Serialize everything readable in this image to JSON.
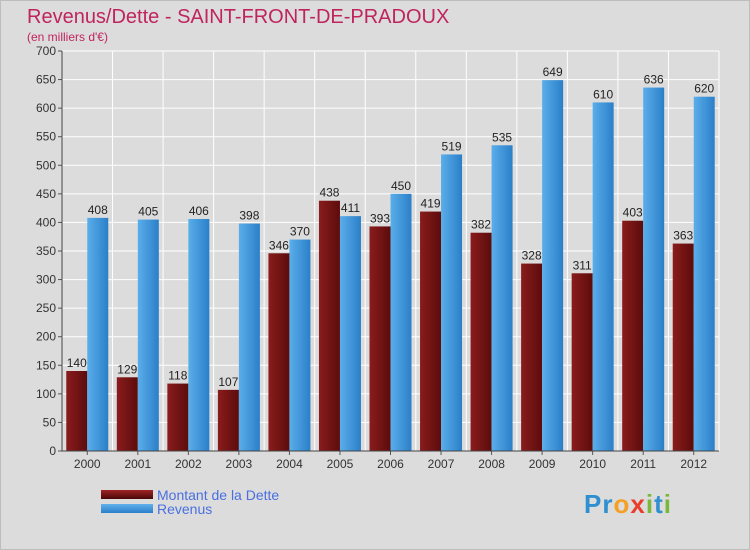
{
  "header": {
    "title": "Revenus/Dette - SAINT-FRONT-DE-PRADOUX",
    "subtitle": "(en milliers d'€)"
  },
  "legend": {
    "items": [
      {
        "label": "Montant de la Dette",
        "color": "#7a1515"
      },
      {
        "label": "Revenus",
        "color": "#3f97de"
      }
    ]
  },
  "logo": {
    "letters": [
      "P",
      "r",
      "o",
      "x",
      "i",
      "t",
      "i"
    ],
    "colors": [
      "#2f8fd0",
      "#2f8fd0",
      "#f4a026",
      "#e83e2b",
      "#7ab83a",
      "#2f8fd0",
      "#7ab83a"
    ]
  },
  "chart_data": {
    "type": "bar",
    "title": "Revenus/Dette - SAINT-FRONT-DE-PRADOUX",
    "subtitle": "(en milliers d'€)",
    "categories": [
      "2000",
      "2001",
      "2002",
      "2003",
      "2004",
      "2005",
      "2006",
      "2007",
      "2008",
      "2009",
      "2010",
      "2011",
      "2012"
    ],
    "ylim": [
      0,
      700
    ],
    "yticks": [
      0,
      50,
      100,
      150,
      200,
      250,
      300,
      350,
      400,
      450,
      500,
      550,
      600,
      650,
      700
    ],
    "grid": true,
    "series": [
      {
        "name": "Montant de la Dette",
        "color": "#7a1515",
        "values": [
          140,
          129,
          118,
          107,
          346,
          438,
          393,
          419,
          382,
          328,
          311,
          403,
          363
        ]
      },
      {
        "name": "Revenus",
        "color": "#3f97de",
        "values": [
          408,
          405,
          406,
          398,
          370,
          411,
          450,
          519,
          535,
          649,
          610,
          636,
          620
        ]
      }
    ]
  }
}
